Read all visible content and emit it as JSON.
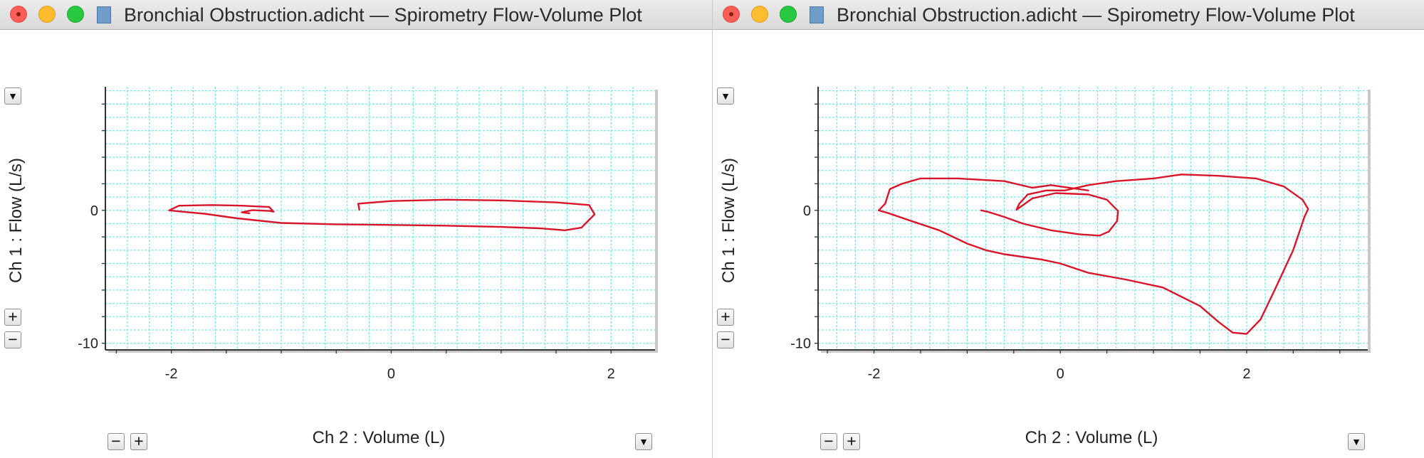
{
  "windows": [
    {
      "title": "Bronchial Obstruction.adicht — Spirometry Flow-Volume Plot",
      "controls": {
        "plus": "+",
        "minus": "−",
        "menu": "▼"
      }
    },
    {
      "title": "Bronchial Obstruction.adicht — Spirometry Flow-Volume Plot",
      "controls": {
        "plus": "+",
        "minus": "−",
        "menu": "▼"
      }
    }
  ],
  "colors": {
    "grid": "#7fe6ee",
    "trace": "#d8152a",
    "axis": "#333333"
  },
  "chart_data": [
    {
      "type": "line",
      "xlabel": "Ch 2 : Volume (L)",
      "ylabel": "Ch 1 : Flow (L/s)",
      "xlim": [
        -2.6,
        2.4
      ],
      "ylim": [
        -10.5,
        9.3
      ],
      "xticks": [
        -2,
        0,
        2
      ],
      "yticks": [
        0,
        -10
      ],
      "grid": true,
      "series": [
        {
          "points": [
            [
              -1.29,
              -0.22
            ],
            [
              -1.36,
              -0.15
            ],
            [
              -1.26,
              0.02
            ],
            [
              -1.1,
              -0.05
            ],
            [
              -1.07,
              -0.1
            ],
            [
              -1.11,
              0.25
            ],
            [
              -1.36,
              0.35
            ],
            [
              -1.63,
              0.4
            ],
            [
              -1.93,
              0.35
            ],
            [
              -2.02,
              0.0
            ],
            [
              -1.9,
              -0.1
            ],
            [
              -1.7,
              -0.25
            ],
            [
              -1.4,
              -0.6
            ],
            [
              -1.0,
              -0.95
            ],
            [
              -0.5,
              -1.05
            ],
            [
              0.0,
              -1.1
            ],
            [
              0.5,
              -1.15
            ],
            [
              1.0,
              -1.25
            ],
            [
              1.35,
              -1.35
            ],
            [
              1.58,
              -1.5
            ],
            [
              1.73,
              -1.3
            ],
            [
              1.85,
              -0.3
            ],
            [
              1.8,
              0.4
            ],
            [
              1.5,
              0.6
            ],
            [
              1.0,
              0.75
            ],
            [
              0.5,
              0.8
            ],
            [
              0.0,
              0.7
            ],
            [
              -0.3,
              0.5
            ],
            [
              -0.29,
              0.05
            ]
          ]
        }
      ]
    },
    {
      "type": "line",
      "xlabel": "Ch 2 : Volume (L)",
      "ylabel": "Ch 1 : Flow (L/s)",
      "xlim": [
        -2.6,
        3.3
      ],
      "ylim": [
        -10.5,
        9.3
      ],
      "xticks": [
        -2,
        0,
        2
      ],
      "yticks": [
        0,
        -10
      ],
      "grid": true,
      "series": [
        {
          "points": [
            [
              -0.85,
              0.0
            ],
            [
              -0.78,
              -0.1
            ],
            [
              -0.6,
              -0.5
            ],
            [
              -0.4,
              -1.0
            ],
            [
              -0.1,
              -1.5
            ],
            [
              0.2,
              -1.8
            ],
            [
              0.42,
              -1.9
            ],
            [
              0.52,
              -1.6
            ],
            [
              0.61,
              -0.8
            ],
            [
              0.62,
              -0.05
            ],
            [
              0.5,
              0.8
            ],
            [
              0.3,
              1.2
            ],
            [
              -0.05,
              1.3
            ],
            [
              -0.3,
              0.9
            ],
            [
              -0.47,
              0.05
            ],
            [
              -0.44,
              0.5
            ],
            [
              -0.35,
              1.2
            ],
            [
              -0.15,
              1.5
            ],
            [
              0.05,
              1.5
            ],
            [
              0.3,
              1.9
            ],
            [
              0.6,
              2.2
            ],
            [
              1.0,
              2.4
            ],
            [
              1.3,
              2.7
            ],
            [
              1.7,
              2.6
            ],
            [
              2.1,
              2.4
            ],
            [
              2.4,
              1.8
            ],
            [
              2.6,
              0.8
            ],
            [
              2.66,
              0.1
            ],
            [
              2.62,
              -0.5
            ],
            [
              2.5,
              -3.0
            ],
            [
              2.3,
              -6.0
            ],
            [
              2.15,
              -8.2
            ],
            [
              2.0,
              -9.3
            ],
            [
              1.85,
              -9.2
            ],
            [
              1.7,
              -8.4
            ],
            [
              1.5,
              -7.2
            ],
            [
              1.1,
              -5.8
            ],
            [
              0.7,
              -5.2
            ],
            [
              0.3,
              -4.7
            ],
            [
              0.0,
              -4.0
            ],
            [
              -0.2,
              -3.7
            ],
            [
              -0.6,
              -3.3
            ],
            [
              -0.8,
              -3.0
            ],
            [
              -1.0,
              -2.5
            ],
            [
              -1.3,
              -1.5
            ],
            [
              -1.6,
              -0.8
            ],
            [
              -1.85,
              -0.2
            ],
            [
              -1.95,
              0.0
            ],
            [
              -1.88,
              0.5
            ],
            [
              -1.83,
              1.6
            ],
            [
              -1.7,
              2.0
            ],
            [
              -1.5,
              2.4
            ],
            [
              -1.1,
              2.4
            ],
            [
              -0.6,
              2.2
            ],
            [
              -0.3,
              1.7
            ],
            [
              -0.1,
              1.9
            ],
            [
              0.3,
              1.5
            ]
          ]
        }
      ]
    }
  ]
}
